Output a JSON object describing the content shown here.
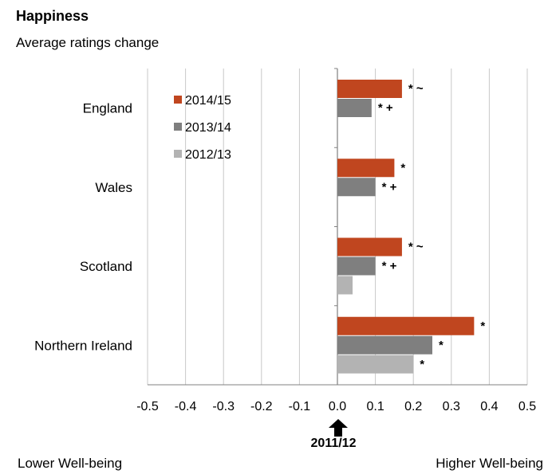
{
  "title": "Happiness",
  "subtitle": "Average ratings change",
  "baseline_label": "2011/12",
  "footer": {
    "lower": "Lower Well-being",
    "higher": "Higher Well-being"
  },
  "chart_data": {
    "type": "bar",
    "orientation": "horizontal",
    "categories": [
      "England",
      "Wales",
      "Scotland",
      "Northern Ireland"
    ],
    "series": [
      {
        "name": "2014/15",
        "color": "#C0461F",
        "values": [
          0.17,
          0.15,
          0.17,
          0.36
        ],
        "annotations": [
          "* ~",
          "*",
          "* ~",
          "*"
        ]
      },
      {
        "name": "2013/14",
        "color": "#7F7F7F",
        "values": [
          0.09,
          0.1,
          0.1,
          0.25
        ],
        "annotations": [
          "* +",
          "* +",
          "* +",
          "*"
        ]
      },
      {
        "name": "2012/13",
        "color": "#B3B3B3",
        "values": [
          0.0,
          0.0,
          0.04,
          0.2
        ],
        "annotations": [
          "",
          "",
          "",
          "*"
        ]
      }
    ],
    "xlim": [
      -0.5,
      0.5
    ],
    "xticks": [
      "-0.5",
      "-0.4",
      "-0.3",
      "-0.2",
      "-0.1",
      "0.0",
      "0.1",
      "0.2",
      "0.3",
      "0.4",
      "0.5"
    ],
    "grid": true,
    "legend": "top-left"
  }
}
